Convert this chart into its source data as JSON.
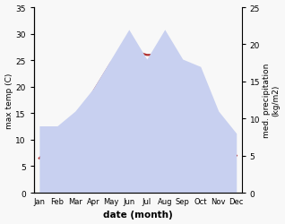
{
  "months": [
    "Jan",
    "Feb",
    "Mar",
    "Apr",
    "May",
    "Jun",
    "Jul",
    "Aug",
    "Sep",
    "Oct",
    "Nov",
    "Dec"
  ],
  "temp": [
    6.5,
    10.0,
    13.0,
    19.0,
    24.5,
    27.0,
    26.0,
    26.0,
    22.0,
    16.0,
    10.0,
    7.0
  ],
  "precip": [
    9,
    9,
    11,
    14,
    18,
    22,
    18,
    22,
    18,
    17,
    11,
    8
  ],
  "temp_color": "#b03030",
  "precip_fill_color": "#c8d0f0",
  "left_ylabel": "max temp (C)",
  "right_ylabel": "med. precipitation\n(kg/m2)",
  "xlabel": "date (month)",
  "ylim_left": [
    0,
    35
  ],
  "ylim_right": [
    0,
    25
  ],
  "yticks_left": [
    0,
    5,
    10,
    15,
    20,
    25,
    30,
    35
  ],
  "yticks_right": [
    0,
    5,
    10,
    15,
    20,
    25
  ],
  "bg_color": "#f8f8f8"
}
